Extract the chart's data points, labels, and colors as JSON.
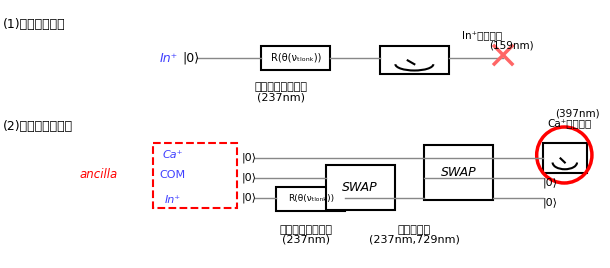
{
  "title": "",
  "bg_color": "#ffffff",
  "fig_width": 6.1,
  "fig_height": 2.68,
  "section1_label": "(1)従来の分光法",
  "section2_label": "(2)量子論理分光法",
  "ion_label_In": "In⁺",
  "ion_label_Ca": "Ca⁺",
  "ion_label_COM": "COM",
  "ket0": "|0⟩",
  "box_R_label": "R(θ(νₜₗₒₙₖ))",
  "box_SWAP_label": "SWAP",
  "ancilla_label": "ancilla",
  "label_clock1": "時計レーザー照射",
  "label_clock1_nm": "(237nm)",
  "label_clock2": "時計レーザー照射",
  "label_clock2_nm": "(237nm)",
  "label_gate": "量子ゲート",
  "label_gate_nm": "(237nm,729nm)",
  "label_In_fluor": "In⁺蛍光観測",
  "label_In_fluor_nm": "(159nm)",
  "label_Ca_fluor": "Ca⁺蛍光観測",
  "label_Ca_fluor_nm": "(397nm)",
  "color_In": "#4040ff",
  "color_Ca": "#4040ff",
  "color_COM": "#4040ff",
  "color_ancilla": "#ff0000",
  "color_red_circle": "#ff0000",
  "color_cross": "#ff6666",
  "color_box": "#000000",
  "color_line": "#888888",
  "color_text": "#000000",
  "color_dashed_box": "#ff0000"
}
